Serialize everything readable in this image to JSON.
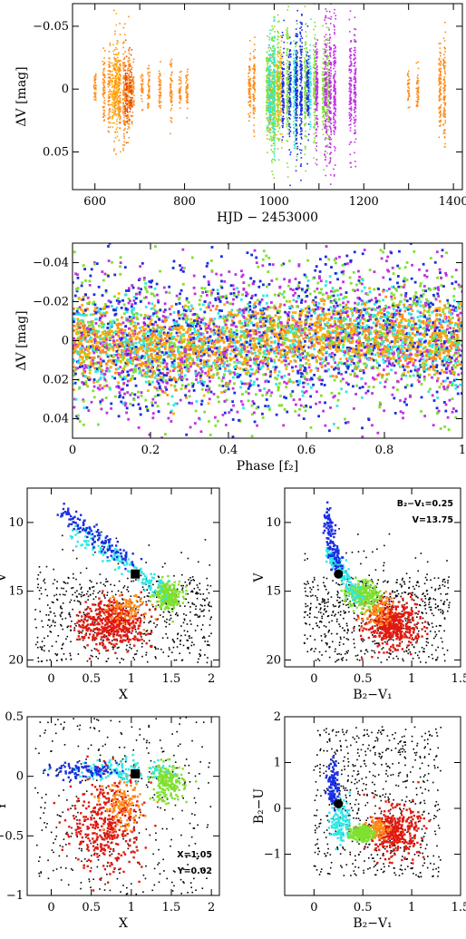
{
  "colors": {
    "orange": "#ff8c1a",
    "gold": "#ffb000",
    "green": "#7fe030",
    "cyan": "#2ee8e8",
    "blue": "#1a2ee0",
    "magenta": "#c030e0",
    "red": "#e01a10",
    "darkorange": "#e05010",
    "black": "#000000"
  },
  "chart_data": [
    {
      "id": "light-curve",
      "type": "scatter",
      "xlabel": "HJD − 2453000",
      "ylabel": "ΔV [mag]",
      "xlim": [
        550,
        1420
      ],
      "ylim": [
        0.08,
        -0.068
      ],
      "xticks": [
        600,
        700,
        800,
        900,
        1000,
        1100,
        1200,
        1300,
        1400
      ],
      "xtick_labels": [
        "600",
        "800",
        "1000",
        "1200",
        "1400"
      ],
      "yticks": [
        -0.05,
        0,
        0.05
      ],
      "ytick_labels": [
        "−0.05",
        "0",
        "0.05"
      ],
      "y_inverted": true,
      "series": [
        {
          "color": "orange",
          "segments": [
            [
              600,
              0.015
            ],
            [
              620,
              0.03
            ],
            [
              632,
              0.035
            ],
            [
              645,
              0.04
            ],
            [
              655,
              0.04
            ],
            [
              665,
              0.045
            ],
            [
              675,
              0.045
            ],
            [
              685,
              0.02
            ],
            [
              705,
              0.015
            ],
            [
              720,
              0.02
            ],
            [
              745,
              0.02
            ],
            [
              770,
              0.025
            ],
            [
              790,
              0.015
            ],
            [
              805,
              0.02
            ],
            [
              945,
              0.03
            ],
            [
              955,
              0.035
            ],
            [
              990,
              0.04
            ],
            [
              1370,
              0.04
            ],
            [
              1380,
              0.045
            ],
            [
              1300,
              0.015
            ],
            [
              1320,
              0.02
            ]
          ]
        },
        {
          "color": "gold",
          "segments": [
            [
              640,
              0.03
            ],
            [
              650,
              0.04
            ],
            [
              1007,
              0.035
            ],
            [
              1015,
              0.04
            ]
          ]
        },
        {
          "color": "darkorange",
          "segments": [
            [
              670,
              0.035
            ],
            [
              680,
              0.03
            ]
          ]
        },
        {
          "color": "green",
          "segments": [
            [
              985,
              0.045
            ],
            [
              995,
              0.06
            ],
            [
              1000,
              0.06
            ],
            [
              1010,
              0.05
            ],
            [
              1030,
              0.055
            ],
            [
              1050,
              0.05
            ],
            [
              1070,
              0.055
            ],
            [
              1090,
              0.05
            ],
            [
              1110,
              0.04
            ],
            [
              1120,
              0.05
            ]
          ]
        },
        {
          "color": "cyan",
          "segments": [
            [
              990,
              0.045
            ],
            [
              1000,
              0.05
            ],
            [
              1045,
              0.045
            ],
            [
              1080,
              0.04
            ]
          ]
        },
        {
          "color": "blue",
          "segments": [
            [
              1020,
              0.04
            ],
            [
              1035,
              0.045
            ],
            [
              1050,
              0.06
            ],
            [
              1060,
              0.065
            ],
            [
              1075,
              0.04
            ]
          ]
        },
        {
          "color": "magenta",
          "segments": [
            [
              1095,
              0.055
            ],
            [
              1115,
              0.06
            ],
            [
              1125,
              0.065
            ],
            [
              1135,
              0.06
            ],
            [
              1170,
              0.05
            ],
            [
              1180,
              0.05
            ]
          ]
        }
      ]
    },
    {
      "id": "phase-diagram",
      "type": "scatter",
      "xlabel": "Phase [f₂]",
      "ylabel": "ΔV [mag]",
      "xlim": [
        0,
        1
      ],
      "ylim": [
        0.05,
        -0.05
      ],
      "xticks": [
        0,
        0.2,
        0.4,
        0.6,
        0.8,
        1
      ],
      "xtick_labels": [
        "0",
        "0.2",
        "0.4",
        "0.6",
        "0.8",
        "1"
      ],
      "yticks": [
        -0.04,
        -0.02,
        0,
        0.02,
        0.04
      ],
      "ytick_labels": [
        "−0.04",
        "−0.02",
        "0",
        "0.02",
        "0.04"
      ],
      "y_inverted": true,
      "series_colors": [
        "green",
        "blue",
        "magenta",
        "cyan",
        "orange",
        "gold"
      ]
    },
    {
      "id": "cmd-v-x",
      "type": "scatter",
      "xlabel": "X",
      "ylabel": "V",
      "xlim": [
        -0.3,
        2.1
      ],
      "ylim": [
        20.5,
        7.5
      ],
      "xticks": [
        0,
        0.5,
        1,
        1.5,
        2
      ],
      "xtick_labels": [
        "0",
        "0.5",
        "1",
        "1.5",
        "2"
      ],
      "yticks": [
        10,
        15,
        20
      ],
      "ytick_labels": [
        "10",
        "15",
        "20"
      ],
      "y_inverted": true,
      "marker": {
        "x": 1.05,
        "y": 13.75,
        "shape": "square"
      }
    },
    {
      "id": "cmd-v-bv",
      "type": "scatter",
      "xlabel": "B₂−V₁",
      "ylabel": "V",
      "xlim": [
        -0.3,
        1.5
      ],
      "ylim": [
        20.5,
        7.5
      ],
      "xticks": [
        0,
        0.5,
        1,
        1.5
      ],
      "xtick_labels": [
        "0",
        "0.5",
        "1",
        "1.5"
      ],
      "yticks": [
        10,
        15,
        20
      ],
      "ytick_labels": [
        "10",
        "15",
        "20"
      ],
      "y_inverted": true,
      "marker": {
        "x": 0.25,
        "y": 13.75,
        "shape": "circle"
      },
      "annotations": [
        "B₂−V₁=0.25",
        "V=13.75"
      ]
    },
    {
      "id": "xy-diagram",
      "type": "scatter",
      "xlabel": "X",
      "ylabel": "Y",
      "xlim": [
        -0.3,
        2.1
      ],
      "ylim": [
        -1,
        0.5
      ],
      "xticks": [
        0,
        0.5,
        1,
        1.5,
        2
      ],
      "xtick_labels": [
        "0",
        "0.5",
        "1",
        "1.5",
        "2"
      ],
      "yticks": [
        -1,
        -0.5,
        0,
        0.5
      ],
      "ytick_labels": [
        "−1",
        "−0.5",
        "0",
        "0.5"
      ],
      "marker": {
        "x": 1.05,
        "y": 0.02,
        "shape": "square"
      },
      "annotations": [
        "X=1.05",
        "Y=0.02"
      ]
    },
    {
      "id": "cc-diagram",
      "type": "scatter",
      "xlabel": "B₂−V₁",
      "ylabel": "B₂−U",
      "xlim": [
        -0.3,
        1.5
      ],
      "ylim": [
        -1.9,
        2
      ],
      "xticks": [
        0,
        0.5,
        1,
        1.5
      ],
      "xtick_labels": [
        "0",
        "0.5",
        "1",
        "1.5"
      ],
      "yticks": [
        -1,
        0,
        1,
        2
      ],
      "ytick_labels": [
        "−1",
        "0",
        "1",
        "2"
      ],
      "marker": {
        "x": 0.25,
        "y": 0.1,
        "shape": "circle"
      }
    }
  ]
}
